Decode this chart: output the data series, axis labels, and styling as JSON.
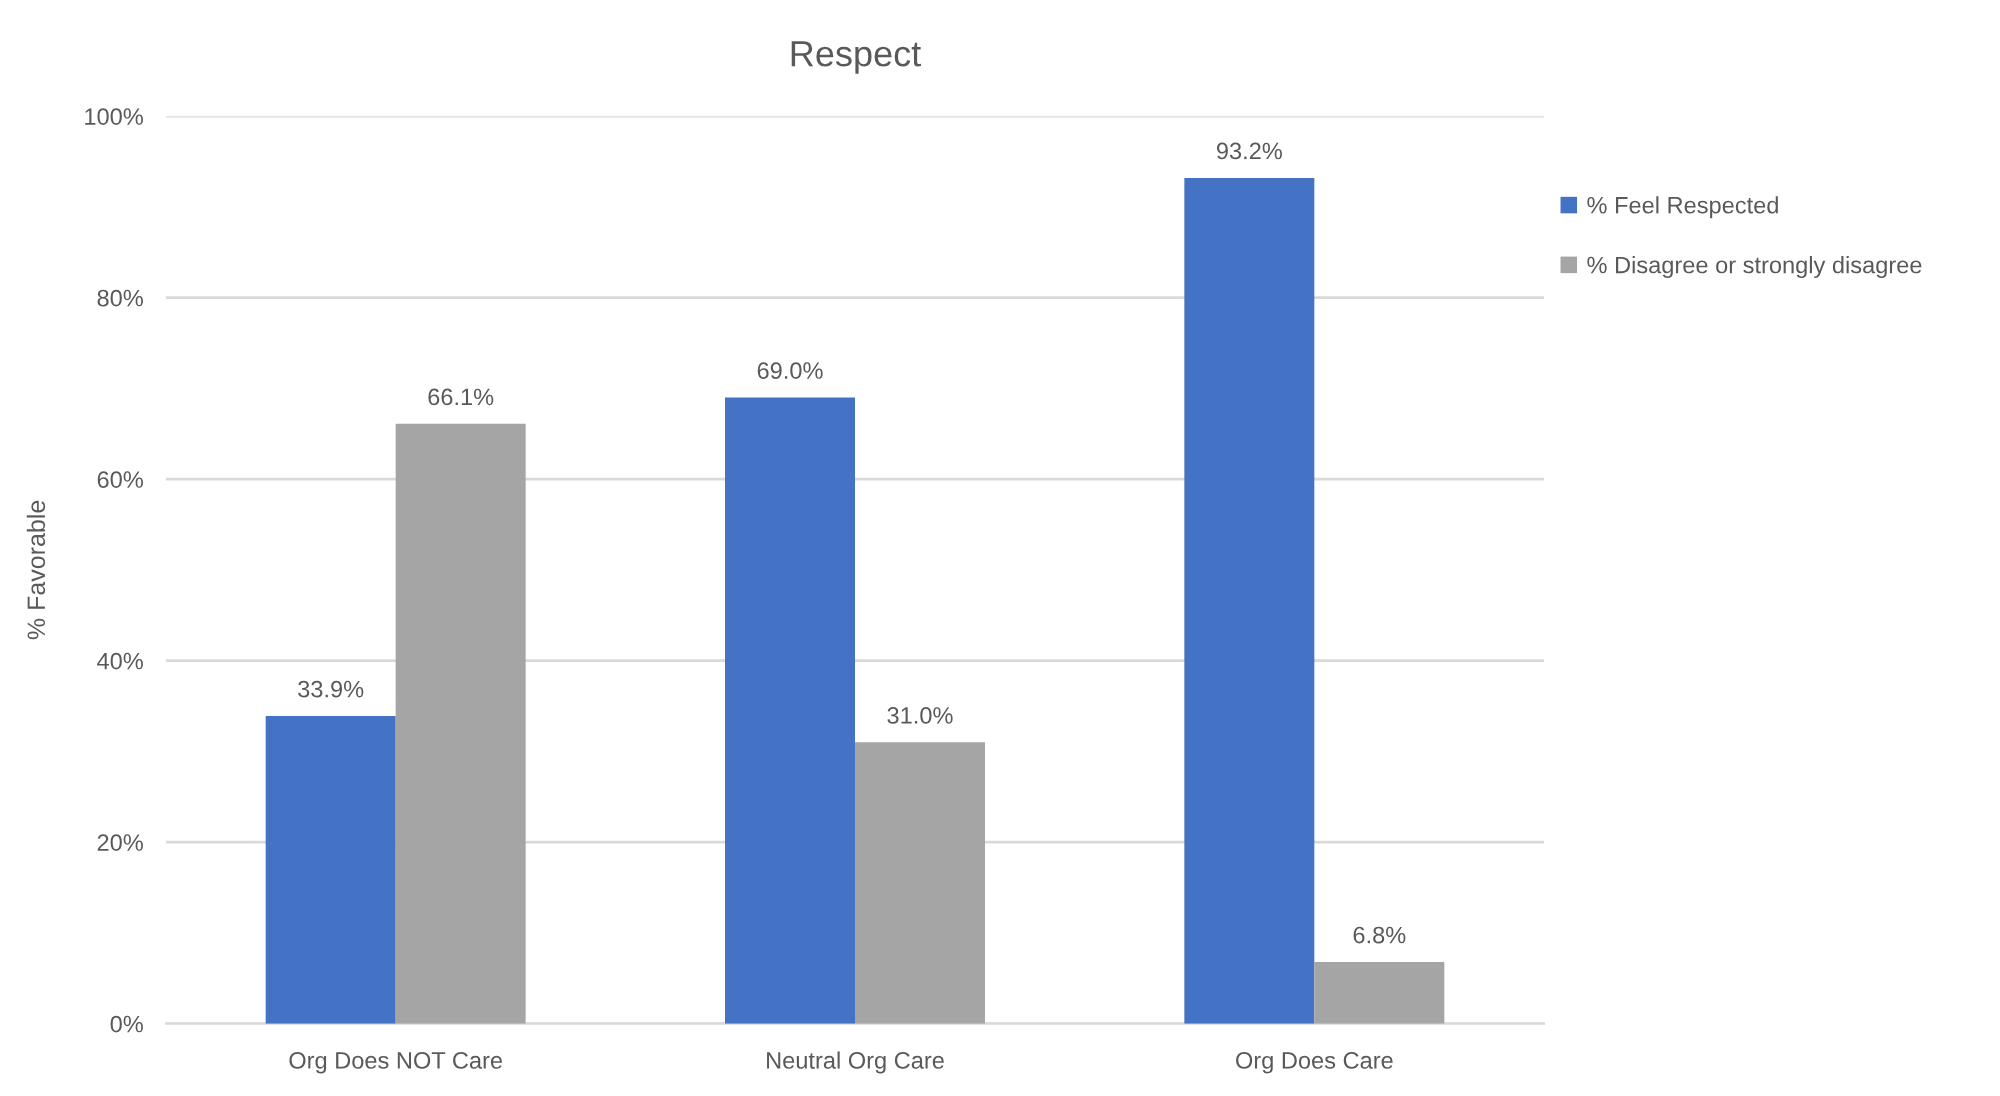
{
  "chart_data": {
    "type": "bar",
    "title": "Respect",
    "ylabel": "% Favorable",
    "categories": [
      "Org Does NOT Care",
      "Neutral Org Care",
      "Org Does Care"
    ],
    "series": [
      {
        "name": "% Feel Respected",
        "color": "#4472c4",
        "values": [
          33.9,
          69.0,
          93.2
        ],
        "value_labels": [
          "33.9%",
          "69.0%",
          "93.2%"
        ]
      },
      {
        "name": "% Disagree or strongly disagree",
        "color": "#a5a5a5",
        "values": [
          66.1,
          31.0,
          6.8
        ],
        "value_labels": [
          "66.1%",
          "31.0%",
          "6.8%"
        ]
      }
    ],
    "ylim": [
      0,
      100
    ],
    "yticks": [
      {
        "value": 0,
        "label": "0%"
      },
      {
        "value": 20,
        "label": "20%"
      },
      {
        "value": 40,
        "label": "40%"
      },
      {
        "value": 60,
        "label": "60%"
      },
      {
        "value": 80,
        "label": "80%"
      },
      {
        "value": 100,
        "label": "100%"
      }
    ],
    "grid": "y",
    "legend": "top right"
  }
}
